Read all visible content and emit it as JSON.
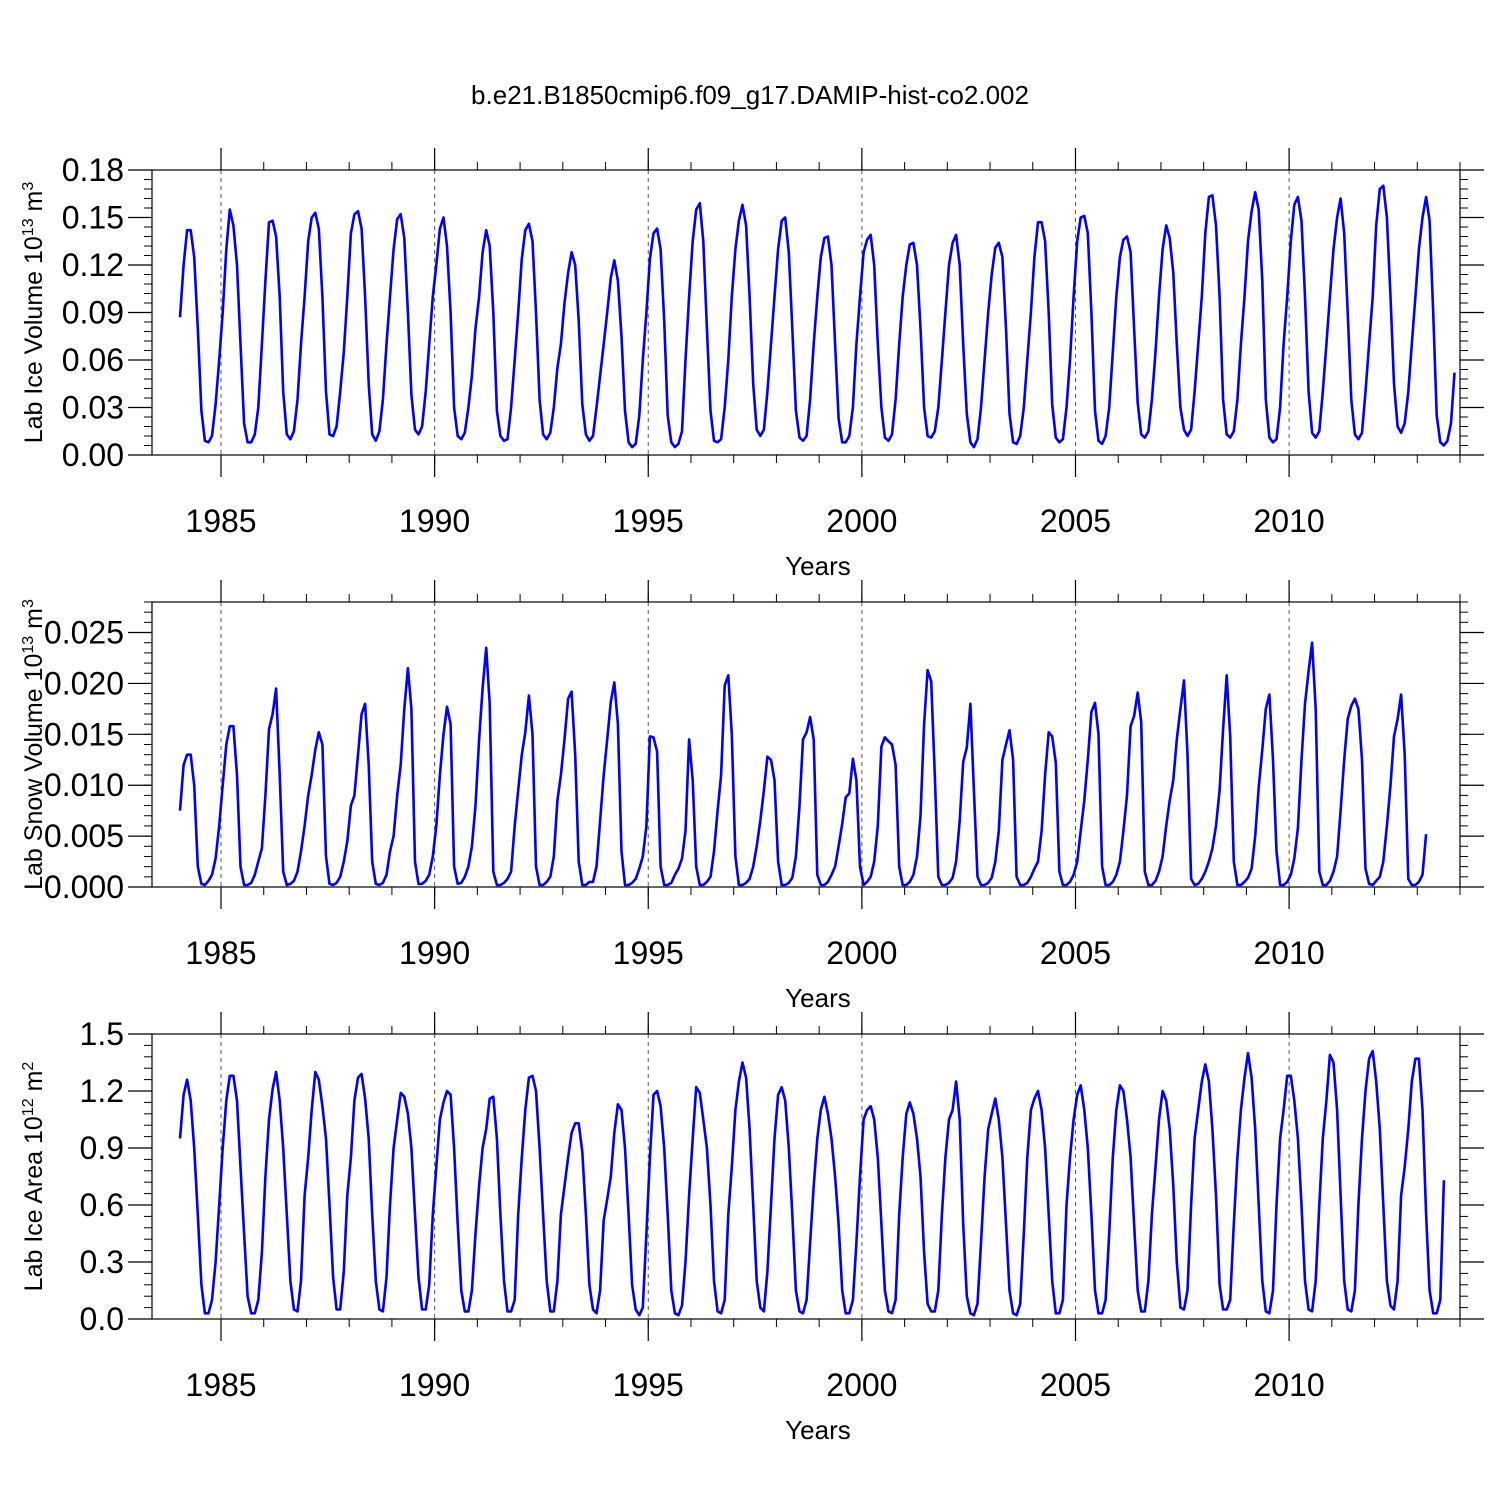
{
  "title": "b.e21.B1850cmip6.f09_g17.DAMIP-hist-co2.002",
  "chart_data": [
    {
      "type": "line",
      "title": "b.e21.B1850cmip6.f09_g17.DAMIP-hist-co2.002",
      "xlabel": "Years",
      "ylabel": {
        "prefix": "Lab Ice Volume 10",
        "exp": "13",
        "unit": " m",
        "unit_exp": "3"
      },
      "xlim": [
        1984.04,
        2014.0
      ],
      "ylim": [
        0,
        0.18
      ],
      "x_ticks": [
        1985,
        1990,
        1995,
        2000,
        2005,
        2010
      ],
      "x_tick_labels": [
        "1985",
        "1990",
        "1995",
        "2000",
        "2005",
        "2010"
      ],
      "y_ticks": [
        0.0,
        0.03,
        0.06,
        0.09,
        0.12,
        0.15,
        0.18
      ],
      "y_tick_labels": [
        "0.00",
        "0.03",
        "0.06",
        "0.09",
        "0.12",
        "0.15",
        "0.18"
      ],
      "y_minor_step": 0.006,
      "x_minor_step": 1,
      "year_gridlines": [
        1985,
        1990,
        1995,
        2000,
        2005,
        2010
      ],
      "grid": "dashed vertical at labeled years",
      "line_color": "#0000ff",
      "x_start": 1984.04,
      "x_step": 0.08333,
      "values": [
        0.087,
        0.12,
        0.142,
        0.142,
        0.125,
        0.08,
        0.028,
        0.009,
        0.008,
        0.012,
        0.032,
        0.06,
        0.09,
        0.13,
        0.155,
        0.145,
        0.12,
        0.07,
        0.02,
        0.008,
        0.008,
        0.013,
        0.03,
        0.07,
        0.11,
        0.147,
        0.148,
        0.138,
        0.1,
        0.04,
        0.013,
        0.01,
        0.015,
        0.035,
        0.07,
        0.1,
        0.135,
        0.15,
        0.153,
        0.143,
        0.1,
        0.04,
        0.013,
        0.012,
        0.018,
        0.04,
        0.065,
        0.1,
        0.14,
        0.152,
        0.154,
        0.143,
        0.1,
        0.045,
        0.013,
        0.009,
        0.015,
        0.035,
        0.07,
        0.1,
        0.13,
        0.149,
        0.152,
        0.137,
        0.09,
        0.038,
        0.016,
        0.013,
        0.018,
        0.04,
        0.07,
        0.1,
        0.12,
        0.143,
        0.15,
        0.132,
        0.09,
        0.03,
        0.012,
        0.01,
        0.014,
        0.03,
        0.05,
        0.08,
        0.1,
        0.128,
        0.142,
        0.132,
        0.09,
        0.028,
        0.012,
        0.009,
        0.01,
        0.03,
        0.06,
        0.09,
        0.124,
        0.142,
        0.146,
        0.135,
        0.09,
        0.035,
        0.013,
        0.01,
        0.014,
        0.03,
        0.055,
        0.07,
        0.096,
        0.115,
        0.128,
        0.12,
        0.085,
        0.032,
        0.013,
        0.009,
        0.012,
        0.03,
        0.05,
        0.07,
        0.09,
        0.112,
        0.123,
        0.11,
        0.075,
        0.028,
        0.008,
        0.005,
        0.007,
        0.025,
        0.06,
        0.09,
        0.124,
        0.14,
        0.143,
        0.13,
        0.085,
        0.025,
        0.008,
        0.005,
        0.007,
        0.015,
        0.06,
        0.1,
        0.135,
        0.155,
        0.159,
        0.135,
        0.08,
        0.028,
        0.009,
        0.008,
        0.01,
        0.03,
        0.06,
        0.1,
        0.13,
        0.148,
        0.158,
        0.145,
        0.1,
        0.045,
        0.016,
        0.012,
        0.016,
        0.04,
        0.07,
        0.1,
        0.13,
        0.148,
        0.15,
        0.128,
        0.08,
        0.028,
        0.011,
        0.009,
        0.012,
        0.035,
        0.07,
        0.1,
        0.125,
        0.137,
        0.138,
        0.12,
        0.07,
        0.023,
        0.008,
        0.008,
        0.012,
        0.03,
        0.07,
        0.1,
        0.128,
        0.136,
        0.139,
        0.12,
        0.07,
        0.03,
        0.011,
        0.009,
        0.013,
        0.035,
        0.07,
        0.1,
        0.12,
        0.133,
        0.134,
        0.12,
        0.08,
        0.03,
        0.012,
        0.011,
        0.015,
        0.03,
        0.06,
        0.09,
        0.12,
        0.134,
        0.139,
        0.12,
        0.07,
        0.026,
        0.008,
        0.005,
        0.01,
        0.03,
        0.06,
        0.09,
        0.114,
        0.131,
        0.134,
        0.125,
        0.08,
        0.026,
        0.008,
        0.007,
        0.012,
        0.03,
        0.06,
        0.09,
        0.125,
        0.147,
        0.147,
        0.135,
        0.09,
        0.032,
        0.011,
        0.008,
        0.01,
        0.03,
        0.06,
        0.1,
        0.135,
        0.15,
        0.151,
        0.14,
        0.09,
        0.028,
        0.009,
        0.007,
        0.012,
        0.03,
        0.065,
        0.1,
        0.125,
        0.136,
        0.138,
        0.128,
        0.08,
        0.033,
        0.013,
        0.011,
        0.015,
        0.035,
        0.065,
        0.1,
        0.13,
        0.145,
        0.137,
        0.115,
        0.07,
        0.03,
        0.016,
        0.012,
        0.016,
        0.04,
        0.07,
        0.1,
        0.14,
        0.163,
        0.164,
        0.145,
        0.1,
        0.035,
        0.013,
        0.011,
        0.015,
        0.035,
        0.07,
        0.1,
        0.135,
        0.154,
        0.166,
        0.155,
        0.11,
        0.035,
        0.011,
        0.008,
        0.01,
        0.03,
        0.07,
        0.1,
        0.135,
        0.158,
        0.163,
        0.148,
        0.1,
        0.04,
        0.014,
        0.011,
        0.015,
        0.04,
        0.07,
        0.1,
        0.13,
        0.15,
        0.162,
        0.14,
        0.09,
        0.035,
        0.013,
        0.01,
        0.014,
        0.04,
        0.07,
        0.1,
        0.145,
        0.168,
        0.17,
        0.15,
        0.1,
        0.045,
        0.018,
        0.014,
        0.02,
        0.04,
        0.07,
        0.1,
        0.13,
        0.15,
        0.163,
        0.148,
        0.09,
        0.025,
        0.008,
        0.006,
        0.009,
        0.02,
        0.052
      ]
    },
    {
      "type": "line",
      "xlabel": "Years",
      "ylabel": {
        "prefix": "Lab Snow Volume 10",
        "exp": "13",
        "unit": " m",
        "unit_exp": "3"
      },
      "xlim": [
        1984.04,
        2014.0
      ],
      "ylim": [
        0,
        0.028
      ],
      "x_ticks": [
        1985,
        1990,
        1995,
        2000,
        2005,
        2010
      ],
      "x_tick_labels": [
        "1985",
        "1990",
        "1995",
        "2000",
        "2005",
        "2010"
      ],
      "y_ticks": [
        0.0,
        0.005,
        0.01,
        0.015,
        0.02,
        0.025
      ],
      "y_tick_labels": [
        "0.000",
        "0.005",
        "0.010",
        "0.015",
        "0.020",
        "0.025"
      ],
      "y_minor_step": 0.001,
      "x_minor_step": 1,
      "year_gridlines": [
        1985,
        1990,
        1995,
        2000,
        2005,
        2010
      ],
      "grid": "dashed vertical at labeled years",
      "line_color": "#0000ff",
      "x_start": 1984.04,
      "x_step": 0.08333,
      "values": [
        0.0075,
        0.012,
        0.013,
        0.013,
        0.01,
        0.002,
        0.0003,
        0.0002,
        0.0006,
        0.0012,
        0.0028,
        0.006,
        0.01,
        0.014,
        0.0158,
        0.0158,
        0.011,
        0.002,
        0.0002,
        0.0002,
        0.0004,
        0.0012,
        0.0025,
        0.0038,
        0.009,
        0.0155,
        0.017,
        0.0195,
        0.011,
        0.0015,
        0.0002,
        0.0003,
        0.0006,
        0.0015,
        0.0035,
        0.006,
        0.009,
        0.011,
        0.0135,
        0.0152,
        0.014,
        0.003,
        0.0003,
        0.0002,
        0.0004,
        0.001,
        0.0025,
        0.0045,
        0.008,
        0.009,
        0.013,
        0.017,
        0.018,
        0.012,
        0.0025,
        0.0003,
        0.0002,
        0.0004,
        0.0012,
        0.0035,
        0.005,
        0.009,
        0.012,
        0.0175,
        0.0215,
        0.0175,
        0.0025,
        0.0003,
        0.0003,
        0.0006,
        0.0012,
        0.003,
        0.006,
        0.011,
        0.015,
        0.0177,
        0.016,
        0.002,
        0.0003,
        0.0004,
        0.001,
        0.002,
        0.004,
        0.008,
        0.0145,
        0.0195,
        0.0235,
        0.018,
        0.0015,
        0.0002,
        0.0002,
        0.0004,
        0.0008,
        0.0015,
        0.006,
        0.0095,
        0.013,
        0.0152,
        0.0188,
        0.015,
        0.002,
        0.0002,
        0.0002,
        0.0005,
        0.001,
        0.003,
        0.0085,
        0.011,
        0.0145,
        0.0185,
        0.0192,
        0.013,
        0.0025,
        0.0002,
        0.0002,
        0.0005,
        0.0005,
        0.002,
        0.0065,
        0.011,
        0.0145,
        0.0182,
        0.0201,
        0.016,
        0.0035,
        0.0002,
        0.0002,
        0.0004,
        0.0008,
        0.0018,
        0.003,
        0.006,
        0.0148,
        0.0147,
        0.0133,
        0.002,
        0.0002,
        0.0002,
        0.0004,
        0.0012,
        0.0018,
        0.0028,
        0.0055,
        0.0145,
        0.0105,
        0.002,
        0.0002,
        0.0002,
        0.0005,
        0.001,
        0.0035,
        0.0075,
        0.011,
        0.0198,
        0.0208,
        0.015,
        0.003,
        0.0002,
        0.0002,
        0.0004,
        0.0008,
        0.002,
        0.004,
        0.0065,
        0.0095,
        0.0128,
        0.0125,
        0.0105,
        0.0025,
        0.0002,
        0.0002,
        0.0004,
        0.0009,
        0.003,
        0.008,
        0.0145,
        0.0152,
        0.0167,
        0.0145,
        0.0012,
        0.0002,
        0.0002,
        0.0005,
        0.0012,
        0.002,
        0.004,
        0.0062,
        0.0088,
        0.0092,
        0.0126,
        0.0105,
        0.002,
        0.0002,
        0.0005,
        0.001,
        0.0025,
        0.006,
        0.0138,
        0.0147,
        0.0143,
        0.014,
        0.012,
        0.002,
        0.0002,
        0.0002,
        0.0005,
        0.0012,
        0.003,
        0.007,
        0.016,
        0.0213,
        0.0202,
        0.011,
        0.001,
        0.0002,
        0.0002,
        0.0004,
        0.0009,
        0.0025,
        0.0065,
        0.0123,
        0.0137,
        0.018,
        0.0095,
        0.001,
        0.0002,
        0.0002,
        0.0004,
        0.0009,
        0.0025,
        0.0055,
        0.0125,
        0.014,
        0.0154,
        0.0125,
        0.001,
        0.0002,
        0.0002,
        0.0004,
        0.001,
        0.0018,
        0.0025,
        0.0055,
        0.011,
        0.0152,
        0.0148,
        0.0122,
        0.0015,
        0.0002,
        0.0002,
        0.0005,
        0.0012,
        0.0025,
        0.0055,
        0.0085,
        0.0125,
        0.0172,
        0.0181,
        0.015,
        0.002,
        0.0002,
        0.0002,
        0.0005,
        0.0012,
        0.0025,
        0.0055,
        0.009,
        0.0158,
        0.0168,
        0.0191,
        0.0162,
        0.0015,
        0.0002,
        0.0002,
        0.0006,
        0.0015,
        0.003,
        0.006,
        0.0085,
        0.0105,
        0.0145,
        0.0175,
        0.0203,
        0.013,
        0.0008,
        0.0002,
        0.0003,
        0.0008,
        0.0015,
        0.0025,
        0.0038,
        0.006,
        0.0095,
        0.0155,
        0.0208,
        0.0148,
        0.0025,
        0.0002,
        0.0002,
        0.0005,
        0.0009,
        0.0018,
        0.005,
        0.0098,
        0.0135,
        0.0175,
        0.0189,
        0.0125,
        0.0035,
        0.0002,
        0.0002,
        0.0005,
        0.0012,
        0.0028,
        0.0058,
        0.0125,
        0.018,
        0.0212,
        0.024,
        0.0175,
        0.0015,
        0.0002,
        0.0002,
        0.0006,
        0.0015,
        0.003,
        0.0075,
        0.0125,
        0.0165,
        0.0178,
        0.0185,
        0.0175,
        0.0125,
        0.0018,
        0.0003,
        0.0002,
        0.0006,
        0.001,
        0.0025,
        0.006,
        0.01,
        0.0148,
        0.0165,
        0.0189,
        0.013,
        0.0008,
        0.0002,
        0.0002,
        0.0005,
        0.0012,
        0.0052
      ]
    },
    {
      "type": "line",
      "xlabel": "Years",
      "ylabel": {
        "prefix": "Lab Ice Area 10",
        "exp": "12",
        "unit": " m",
        "unit_exp": "2"
      },
      "xlim": [
        1984.04,
        2014.0
      ],
      "ylim": [
        0,
        1.5
      ],
      "x_ticks": [
        1985,
        1990,
        1995,
        2000,
        2005,
        2010
      ],
      "x_tick_labels": [
        "1985",
        "1990",
        "1995",
        "2000",
        "2005",
        "2010"
      ],
      "y_ticks": [
        0.0,
        0.3,
        0.6,
        0.9,
        1.2,
        1.5
      ],
      "y_tick_labels": [
        "0.0",
        "0.3",
        "0.6",
        "0.9",
        "1.2",
        "1.5"
      ],
      "y_minor_step": 0.06,
      "x_minor_step": 1,
      "year_gridlines": [
        1985,
        1990,
        1995,
        2000,
        2005,
        2010
      ],
      "grid": "dashed vertical at labeled years",
      "line_color": "#0000ff",
      "x_start": 1984.04,
      "x_step": 0.08333,
      "values": [
        0.95,
        1.18,
        1.26,
        1.15,
        0.9,
        0.55,
        0.18,
        0.03,
        0.03,
        0.1,
        0.3,
        0.6,
        0.9,
        1.15,
        1.28,
        1.28,
        1.15,
        0.8,
        0.45,
        0.12,
        0.03,
        0.03,
        0.1,
        0.35,
        0.75,
        1.05,
        1.21,
        1.3,
        1.15,
        0.9,
        0.55,
        0.2,
        0.05,
        0.04,
        0.2,
        0.65,
        0.85,
        1.1,
        1.3,
        1.26,
        1.12,
        0.95,
        0.6,
        0.22,
        0.05,
        0.05,
        0.25,
        0.65,
        0.85,
        1.15,
        1.27,
        1.29,
        1.16,
        0.95,
        0.55,
        0.2,
        0.05,
        0.04,
        0.22,
        0.6,
        0.9,
        1.05,
        1.19,
        1.17,
        1.08,
        0.9,
        0.55,
        0.22,
        0.05,
        0.05,
        0.18,
        0.55,
        0.8,
        1.05,
        1.14,
        1.2,
        1.18,
        0.9,
        0.5,
        0.15,
        0.04,
        0.04,
        0.15,
        0.45,
        0.7,
        0.9,
        1.0,
        1.16,
        1.17,
        0.95,
        0.55,
        0.2,
        0.04,
        0.04,
        0.1,
        0.55,
        0.85,
        1.1,
        1.27,
        1.28,
        1.2,
        0.9,
        0.55,
        0.2,
        0.04,
        0.04,
        0.2,
        0.55,
        0.7,
        0.85,
        0.98,
        1.03,
        1.03,
        0.88,
        0.55,
        0.18,
        0.05,
        0.03,
        0.15,
        0.52,
        0.63,
        0.75,
        0.98,
        1.13,
        1.1,
        0.9,
        0.55,
        0.18,
        0.05,
        0.02,
        0.06,
        0.45,
        0.85,
        1.18,
        1.2,
        1.12,
        0.9,
        0.55,
        0.15,
        0.03,
        0.02,
        0.07,
        0.3,
        0.65,
        0.95,
        1.22,
        1.19,
        1.05,
        0.9,
        0.6,
        0.2,
        0.04,
        0.03,
        0.1,
        0.55,
        0.8,
        1.1,
        1.25,
        1.35,
        1.27,
        1.0,
        0.6,
        0.2,
        0.06,
        0.04,
        0.25,
        0.6,
        0.95,
        1.18,
        1.22,
        1.15,
        0.9,
        0.55,
        0.15,
        0.04,
        0.03,
        0.1,
        0.4,
        0.7,
        0.95,
        1.1,
        1.17,
        1.08,
        0.95,
        0.75,
        0.5,
        0.15,
        0.03,
        0.03,
        0.1,
        0.4,
        0.75,
        1.05,
        1.1,
        1.12,
        1.05,
        0.85,
        0.5,
        0.15,
        0.04,
        0.03,
        0.1,
        0.55,
        0.85,
        1.08,
        1.14,
        1.08,
        0.95,
        0.75,
        0.35,
        0.08,
        0.04,
        0.04,
        0.15,
        0.55,
        0.85,
        1.05,
        1.1,
        1.25,
        1.05,
        0.5,
        0.12,
        0.03,
        0.02,
        0.08,
        0.4,
        0.75,
        1.0,
        1.08,
        1.16,
        1.05,
        0.85,
        0.5,
        0.15,
        0.03,
        0.02,
        0.08,
        0.45,
        0.85,
        1.1,
        1.16,
        1.2,
        1.1,
        0.9,
        0.55,
        0.2,
        0.03,
        0.03,
        0.1,
        0.6,
        0.85,
        1.05,
        1.18,
        1.23,
        1.1,
        0.9,
        0.55,
        0.15,
        0.03,
        0.03,
        0.1,
        0.45,
        0.85,
        1.1,
        1.23,
        1.2,
        1.05,
        0.85,
        0.5,
        0.15,
        0.04,
        0.04,
        0.2,
        0.55,
        0.8,
        1.05,
        1.2,
        1.15,
        1.0,
        0.7,
        0.3,
        0.06,
        0.05,
        0.15,
        0.6,
        0.95,
        1.1,
        1.25,
        1.34,
        1.25,
        1.0,
        0.65,
        0.18,
        0.05,
        0.05,
        0.1,
        0.5,
        0.85,
        1.1,
        1.27,
        1.4,
        1.27,
        1.0,
        0.6,
        0.2,
        0.04,
        0.03,
        0.15,
        0.6,
        0.95,
        1.1,
        1.28,
        1.28,
        1.15,
        0.95,
        0.6,
        0.2,
        0.05,
        0.04,
        0.2,
        0.6,
        0.95,
        1.15,
        1.39,
        1.35,
        1.1,
        0.65,
        0.2,
        0.05,
        0.04,
        0.15,
        0.6,
        0.95,
        1.2,
        1.37,
        1.41,
        1.25,
        1.0,
        0.6,
        0.2,
        0.07,
        0.05,
        0.2,
        0.65,
        0.8,
        1.0,
        1.25,
        1.37,
        1.37,
        1.1,
        0.55,
        0.15,
        0.03,
        0.03,
        0.1,
        0.73
      ]
    }
  ]
}
